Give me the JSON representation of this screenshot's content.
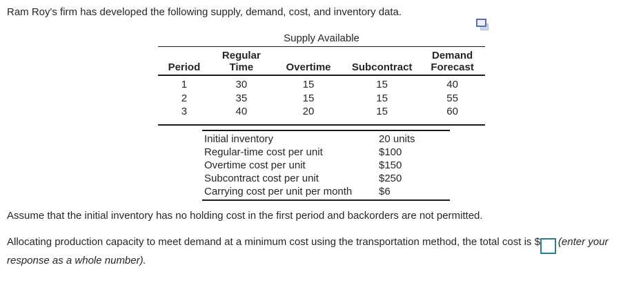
{
  "intro": "Ram Roy's firm has developed the following supply, demand, cost, and inventory data.",
  "icons": {
    "copy": "copy-icon"
  },
  "supply_table": {
    "caption": "Supply Available",
    "columns": [
      {
        "l1": "Period"
      },
      {
        "l1": "Regular",
        "l2": "Time"
      },
      {
        "l1": "Overtime"
      },
      {
        "l1": "Subcontract"
      },
      {
        "l1": "Demand",
        "l2": "Forecast"
      }
    ],
    "rows": [
      [
        "1",
        "30",
        "15",
        "15",
        "40"
      ],
      [
        "2",
        "35",
        "15",
        "15",
        "55"
      ],
      [
        "3",
        "40",
        "20",
        "15",
        "60"
      ]
    ]
  },
  "cost_table": {
    "rows": [
      {
        "label": "Initial inventory",
        "value": "20 units"
      },
      {
        "label": "Regular-time cost per unit",
        "value": "$100"
      },
      {
        "label": "Overtime cost per unit",
        "value": "$150"
      },
      {
        "label": "Subcontract cost per unit",
        "value": "$250"
      },
      {
        "label": "Carrying cost per unit per month",
        "value": "$6"
      }
    ]
  },
  "assumption": "Assume that the initial inventory has no holding cost in the first period and backorders are not permitted.",
  "question": {
    "before_input": "Allocating production capacity to meet demand at a minimum cost using the transportation method, the total cost is $",
    "input_value": "",
    "after_input": "(enter your response as a whole number)."
  },
  "colors": {
    "input_border": "#2a7d8e",
    "icon_front_border": "#5a6cb4",
    "icon_back_fill": "#ccd3ec",
    "table_line": "#1a1a1a"
  }
}
